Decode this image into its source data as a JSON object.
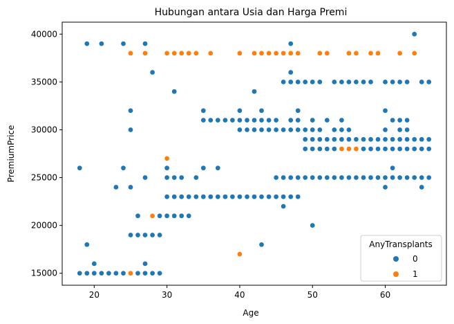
{
  "chart_data": {
    "type": "scatter",
    "title": "Hubungan antara Usia dan Harga Premi",
    "xlabel": "Age",
    "ylabel": "PremiumPrice",
    "xlim": [
      15.6,
      68.4
    ],
    "ylim": [
      13750,
      41250
    ],
    "xticks": [
      20,
      30,
      40,
      50,
      60
    ],
    "yticks": [
      15000,
      20000,
      25000,
      30000,
      35000,
      40000
    ],
    "xtick_labels": [
      "20",
      "30",
      "40",
      "50",
      "60"
    ],
    "ytick_labels": [
      "15000",
      "20000",
      "25000",
      "30000",
      "35000",
      "40000"
    ],
    "grid": false,
    "legend": {
      "title": "AnyTransplants",
      "placement": "lower right",
      "entries": [
        {
          "label": "0",
          "color": "#1f77b4"
        },
        {
          "label": "1",
          "color": "#ff7f0e"
        }
      ]
    },
    "series": [
      {
        "name": "0",
        "color": "#1f77b4",
        "points": [
          [
            18,
            15000
          ],
          [
            19,
            15000
          ],
          [
            20,
            15000
          ],
          [
            21,
            15000
          ],
          [
            22,
            15000
          ],
          [
            23,
            15000
          ],
          [
            24,
            15000
          ],
          [
            26,
            15000
          ],
          [
            27,
            15000
          ],
          [
            28,
            15000
          ],
          [
            29,
            15000
          ],
          [
            19,
            18000
          ],
          [
            20,
            16000
          ],
          [
            27,
            16000
          ],
          [
            43,
            18000
          ],
          [
            50,
            20000
          ],
          [
            25,
            19000
          ],
          [
            26,
            19000
          ],
          [
            27,
            19000
          ],
          [
            28,
            19000
          ],
          [
            29,
            19000
          ],
          [
            26,
            21000
          ],
          [
            29,
            21000
          ],
          [
            30,
            21000
          ],
          [
            31,
            21000
          ],
          [
            32,
            21000
          ],
          [
            33,
            21000
          ],
          [
            46,
            22000
          ],
          [
            30,
            23000
          ],
          [
            31,
            23000
          ],
          [
            32,
            23000
          ],
          [
            33,
            23000
          ],
          [
            34,
            23000
          ],
          [
            35,
            23000
          ],
          [
            36,
            23000
          ],
          [
            37,
            23000
          ],
          [
            38,
            23000
          ],
          [
            39,
            23000
          ],
          [
            40,
            23000
          ],
          [
            41,
            23000
          ],
          [
            42,
            23000
          ],
          [
            43,
            23000
          ],
          [
            44,
            23000
          ],
          [
            45,
            23000
          ],
          [
            46,
            23000
          ],
          [
            47,
            23000
          ],
          [
            48,
            23000
          ],
          [
            23,
            24000
          ],
          [
            25,
            24000
          ],
          [
            60,
            24000
          ],
          [
            65,
            24000
          ],
          [
            27,
            25000
          ],
          [
            30,
            25000
          ],
          [
            31,
            25000
          ],
          [
            32,
            25000
          ],
          [
            34,
            25000
          ],
          [
            45,
            25000
          ],
          [
            46,
            25000
          ],
          [
            47,
            25000
          ],
          [
            48,
            25000
          ],
          [
            49,
            25000
          ],
          [
            50,
            25000
          ],
          [
            51,
            25000
          ],
          [
            52,
            25000
          ],
          [
            53,
            25000
          ],
          [
            54,
            25000
          ],
          [
            55,
            25000
          ],
          [
            56,
            25000
          ],
          [
            57,
            25000
          ],
          [
            58,
            25000
          ],
          [
            59,
            25000
          ],
          [
            60,
            25000
          ],
          [
            61,
            25000
          ],
          [
            62,
            25000
          ],
          [
            63,
            25000
          ],
          [
            64,
            25000
          ],
          [
            65,
            25000
          ],
          [
            66,
            25000
          ],
          [
            18,
            26000
          ],
          [
            24,
            26000
          ],
          [
            30,
            26000
          ],
          [
            35,
            26000
          ],
          [
            37,
            26000
          ],
          [
            61,
            26000
          ],
          [
            49,
            28000
          ],
          [
            50,
            28000
          ],
          [
            51,
            28000
          ],
          [
            52,
            28000
          ],
          [
            53,
            28000
          ],
          [
            57,
            28000
          ],
          [
            58,
            28000
          ],
          [
            59,
            28000
          ],
          [
            60,
            28000
          ],
          [
            61,
            28000
          ],
          [
            62,
            28000
          ],
          [
            63,
            28000
          ],
          [
            64,
            28000
          ],
          [
            65,
            28000
          ],
          [
            66,
            28000
          ],
          [
            49,
            29000
          ],
          [
            50,
            29000
          ],
          [
            51,
            29000
          ],
          [
            52,
            29000
          ],
          [
            53,
            29000
          ],
          [
            54,
            29000
          ],
          [
            55,
            29000
          ],
          [
            56,
            29000
          ],
          [
            57,
            29000
          ],
          [
            58,
            29000
          ],
          [
            59,
            29000
          ],
          [
            60,
            29000
          ],
          [
            61,
            29000
          ],
          [
            62,
            29000
          ],
          [
            63,
            29000
          ],
          [
            64,
            29000
          ],
          [
            65,
            29000
          ],
          [
            66,
            29000
          ],
          [
            25,
            30000
          ],
          [
            40,
            30000
          ],
          [
            41,
            30000
          ],
          [
            42,
            30000
          ],
          [
            43,
            30000
          ],
          [
            44,
            30000
          ],
          [
            45,
            30000
          ],
          [
            46,
            30000
          ],
          [
            47,
            30000
          ],
          [
            48,
            30000
          ],
          [
            49,
            30000
          ],
          [
            50,
            30000
          ],
          [
            51,
            30000
          ],
          [
            53,
            30000
          ],
          [
            54,
            30000
          ],
          [
            55,
            30000
          ],
          [
            60,
            30000
          ],
          [
            62,
            30000
          ],
          [
            63,
            30000
          ],
          [
            35,
            31000
          ],
          [
            36,
            31000
          ],
          [
            37,
            31000
          ],
          [
            38,
            31000
          ],
          [
            39,
            31000
          ],
          [
            40,
            31000
          ],
          [
            41,
            31000
          ],
          [
            42,
            31000
          ],
          [
            43,
            31000
          ],
          [
            44,
            31000
          ],
          [
            45,
            31000
          ],
          [
            47,
            31000
          ],
          [
            48,
            31000
          ],
          [
            50,
            31000
          ],
          [
            52,
            31000
          ],
          [
            54,
            31000
          ],
          [
            61,
            31000
          ],
          [
            62,
            31000
          ],
          [
            63,
            31000
          ],
          [
            25,
            32000
          ],
          [
            35,
            32000
          ],
          [
            40,
            32000
          ],
          [
            43,
            32000
          ],
          [
            48,
            32000
          ],
          [
            60,
            32000
          ],
          [
            31,
            34000
          ],
          [
            42,
            34000
          ],
          [
            46,
            35000
          ],
          [
            47,
            35000
          ],
          [
            48,
            35000
          ],
          [
            49,
            35000
          ],
          [
            50,
            35000
          ],
          [
            51,
            35000
          ],
          [
            53,
            35000
          ],
          [
            54,
            35000
          ],
          [
            55,
            35000
          ],
          [
            56,
            35000
          ],
          [
            57,
            35000
          ],
          [
            58,
            35000
          ],
          [
            60,
            35000
          ],
          [
            61,
            35000
          ],
          [
            62,
            35000
          ],
          [
            63,
            35000
          ],
          [
            65,
            35000
          ],
          [
            66,
            35000
          ],
          [
            28,
            36000
          ],
          [
            47,
            36000
          ],
          [
            19,
            39000
          ],
          [
            21,
            39000
          ],
          [
            24,
            39000
          ],
          [
            27,
            39000
          ],
          [
            47,
            39000
          ],
          [
            64,
            40000
          ]
        ]
      },
      {
        "name": "1",
        "color": "#ff7f0e",
        "points": [
          [
            25,
            15000
          ],
          [
            40,
            17000
          ],
          [
            28,
            21000
          ],
          [
            30,
            27000
          ],
          [
            54,
            28000
          ],
          [
            55,
            28000
          ],
          [
            56,
            28000
          ],
          [
            25,
            38000
          ],
          [
            27,
            38000
          ],
          [
            30,
            38000
          ],
          [
            31,
            38000
          ],
          [
            32,
            38000
          ],
          [
            33,
            38000
          ],
          [
            34,
            38000
          ],
          [
            36,
            38000
          ],
          [
            40,
            38000
          ],
          [
            42,
            38000
          ],
          [
            43,
            38000
          ],
          [
            44,
            38000
          ],
          [
            45,
            38000
          ],
          [
            46,
            38000
          ],
          [
            47,
            38000
          ],
          [
            48,
            38000
          ],
          [
            51,
            38000
          ],
          [
            52,
            38000
          ],
          [
            55,
            38000
          ],
          [
            56,
            38000
          ],
          [
            58,
            38000
          ],
          [
            59,
            38000
          ],
          [
            62,
            38000
          ],
          [
            64,
            38000
          ]
        ]
      }
    ]
  }
}
